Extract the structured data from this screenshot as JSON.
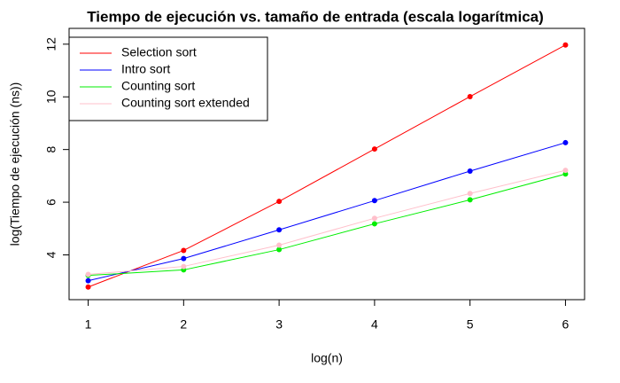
{
  "chart_data": {
    "type": "line",
    "title": "Tiempo de ejecución vs. tamaño de entrada (escala logarítmica)",
    "x_label": "log(n)",
    "y_label": "log(Tiempo de ejecución (ns))",
    "x": [
      1,
      2,
      3,
      4,
      5,
      6
    ],
    "series": [
      {
        "name": "Selection sort",
        "color": "#ff0000",
        "values": [
          2.78,
          4.17,
          6.03,
          8.02,
          10.01,
          11.97
        ]
      },
      {
        "name": "Intro sort",
        "color": "#0000ff",
        "values": [
          3.02,
          3.86,
          4.95,
          6.06,
          7.18,
          8.26
        ]
      },
      {
        "name": "Counting sort",
        "color": "#00ee00",
        "values": [
          3.22,
          3.43,
          4.2,
          5.18,
          6.09,
          7.07
        ]
      },
      {
        "name": "Counting sort extended",
        "color": "#ffc0cb",
        "values": [
          3.26,
          3.56,
          4.37,
          5.39,
          6.33,
          7.21
        ]
      }
    ],
    "xlim": [
      0.8,
      6.2
    ],
    "ylim": [
      2.3,
      12.6
    ],
    "xticks": [
      1,
      2,
      3,
      4,
      5,
      6
    ],
    "yticks": [
      4,
      6,
      8,
      10,
      12
    ],
    "legend": "top-left"
  }
}
